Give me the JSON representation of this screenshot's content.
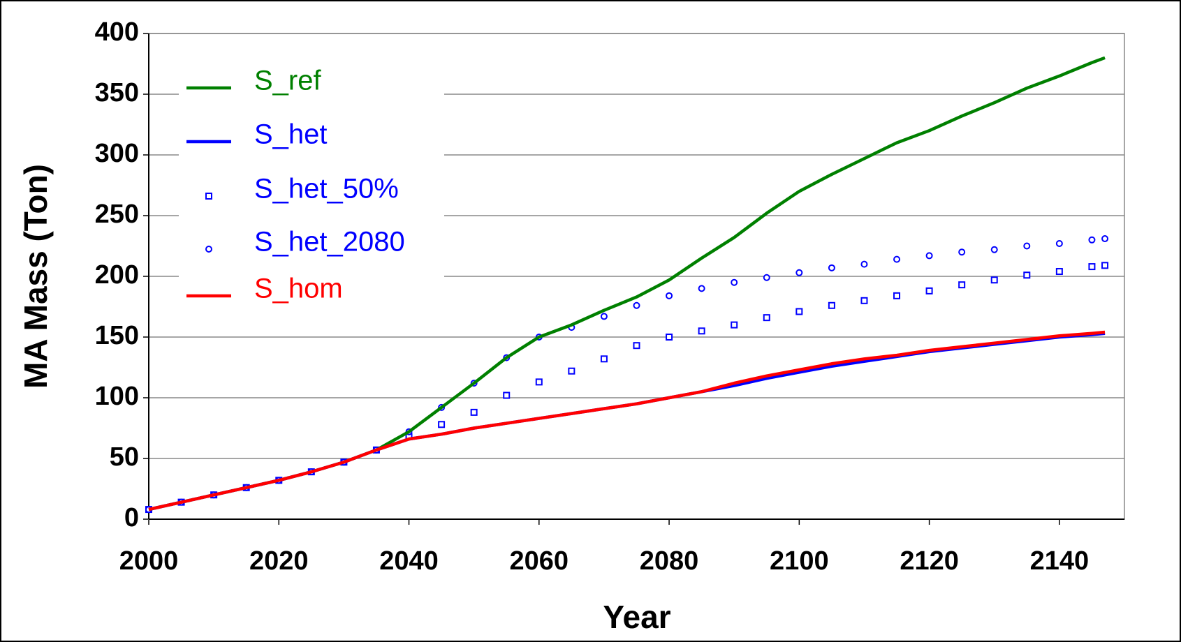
{
  "chart_data": {
    "type": "line",
    "xlabel": "Year",
    "ylabel": "MA Mass (Ton)",
    "x": [
      2000,
      2005,
      2010,
      2015,
      2020,
      2025,
      2030,
      2035,
      2040,
      2045,
      2050,
      2055,
      2060,
      2065,
      2070,
      2075,
      2080,
      2085,
      2090,
      2095,
      2100,
      2105,
      2110,
      2115,
      2120,
      2125,
      2130,
      2135,
      2140,
      2145,
      2147
    ],
    "xlim": [
      2000,
      2150
    ],
    "xticks": [
      2000,
      2020,
      2040,
      2060,
      2080,
      2100,
      2120,
      2140
    ],
    "ylim": [
      0,
      400
    ],
    "yticks": [
      0,
      50,
      100,
      150,
      200,
      250,
      300,
      350,
      400
    ],
    "grid": true,
    "legend": "upper-left",
    "series": [
      {
        "name": "S_ref",
        "color": "#008000",
        "style": "line",
        "values": [
          8,
          14,
          20,
          26,
          32,
          39,
          47,
          57,
          72,
          92,
          112,
          133,
          150,
          160,
          172,
          183,
          197,
          215,
          232,
          252,
          270,
          284,
          297,
          310,
          320,
          332,
          343,
          355,
          365,
          376,
          380
        ]
      },
      {
        "name": "S_het",
        "color": "#0000ff",
        "style": "line",
        "values": [
          8,
          14,
          20,
          26,
          32,
          39,
          47,
          57,
          66,
          70,
          75,
          79,
          83,
          87,
          91,
          95,
          100,
          105,
          110,
          116,
          121,
          126,
          130,
          134,
          138,
          141,
          144,
          147,
          150,
          152,
          153
        ]
      },
      {
        "name": "S_het_50%",
        "color": "#0000ff",
        "style": "square",
        "values": [
          8,
          14,
          20,
          26,
          32,
          39,
          47,
          57,
          68,
          78,
          88,
          102,
          113,
          122,
          132,
          143,
          150,
          155,
          160,
          166,
          171,
          176,
          180,
          184,
          188,
          193,
          197,
          201,
          204,
          208,
          209
        ]
      },
      {
        "name": "S_het_2080",
        "color": "#0000ff",
        "style": "circle",
        "values": [
          8,
          14,
          20,
          26,
          32,
          39,
          47,
          57,
          72,
          92,
          112,
          133,
          150,
          158,
          167,
          176,
          184,
          190,
          195,
          199,
          203,
          207,
          210,
          214,
          217,
          220,
          222,
          225,
          227,
          230,
          231
        ]
      },
      {
        "name": "S_hom",
        "color": "#ff0000",
        "style": "line",
        "values": [
          8,
          14,
          20,
          26,
          32,
          39,
          47,
          57,
          66,
          70,
          75,
          79,
          83,
          87,
          91,
          95,
          100,
          105,
          112,
          118,
          123,
          128,
          132,
          135,
          139,
          142,
          145,
          148,
          151,
          153,
          154
        ]
      }
    ]
  }
}
